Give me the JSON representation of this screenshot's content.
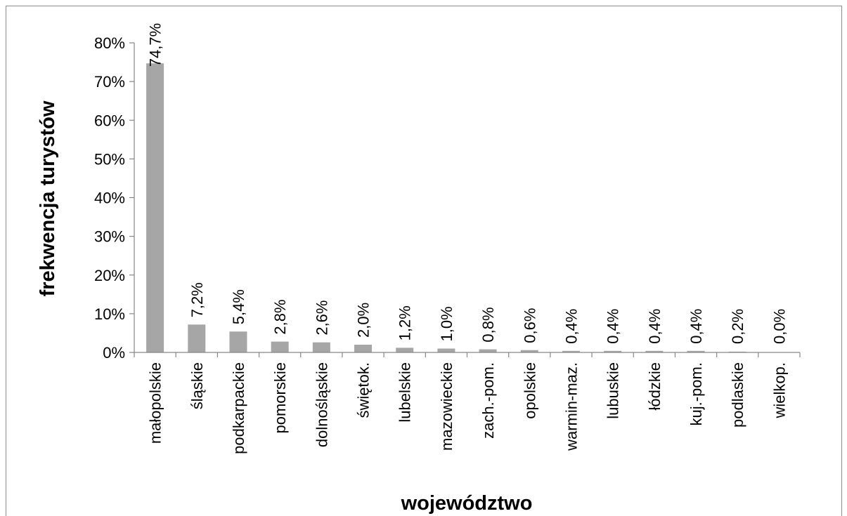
{
  "chart_data": {
    "type": "bar",
    "title": "",
    "xlabel": "województwo",
    "ylabel": "frekwencja turystów",
    "ylim": [
      0,
      80
    ],
    "yticks": [
      0,
      10,
      20,
      30,
      40,
      50,
      60,
      70,
      80
    ],
    "ytick_labels": [
      "0%",
      "10%",
      "20%",
      "30%",
      "40%",
      "50%",
      "60%",
      "70%",
      "80%"
    ],
    "grid": false,
    "legend": "none",
    "bar_color": "#a6a6a6",
    "categories": [
      "małopolskie",
      "śląskie",
      "podkarpackie",
      "pomorskie",
      "dolnośląskie",
      "świętok.",
      "lubelskie",
      "mazowieckie",
      "zach.-pom.",
      "opolskie",
      "warmin-maz.",
      "lubuskie",
      "łódzkie",
      "kuj.-pom.",
      "podlaskie",
      "wielkop."
    ],
    "values": [
      74.7,
      7.2,
      5.4,
      2.8,
      2.6,
      2.0,
      1.2,
      1.0,
      0.8,
      0.6,
      0.4,
      0.4,
      0.4,
      0.4,
      0.2,
      0.0
    ],
    "data_labels": [
      "74,7%",
      "7,2%",
      "5,4%",
      "2,8%",
      "2,6%",
      "2,0%",
      "1,2%",
      "1,0%",
      "0,8%",
      "0,6%",
      "0,4%",
      "0,4%",
      "0,4%",
      "0,4%",
      "0,2%",
      "0,0%"
    ]
  }
}
